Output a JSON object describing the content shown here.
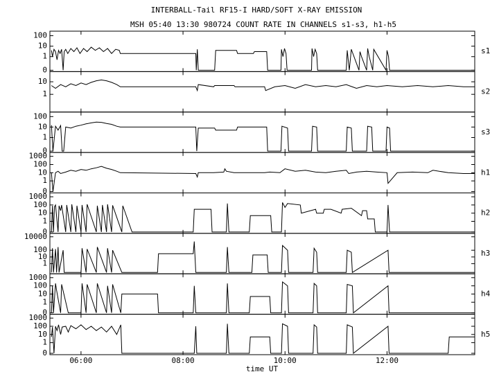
{
  "title": "INTERBALL-Tail RF15-I HARD/SOFT X-RAY EMISSION",
  "subtitle": "MSH 05:40 13:30 980724  COUNT RATE IN CHANNELS s1-s3, h1-h5",
  "xlabel": "time UT",
  "chart_data": [
    {
      "type": "line",
      "label": "s1",
      "color": "#000000",
      "yscale": "log-with-zero",
      "xlim": [
        5.39,
        13.72
      ],
      "xticks": [
        {
          "value": 6,
          "label": "06:00"
        },
        {
          "value": 8,
          "label": "08:00"
        },
        {
          "value": 10,
          "label": "10:00"
        },
        {
          "value": 12,
          "label": "12:00"
        }
      ],
      "ylim": [
        0,
        200
      ],
      "yticks": [
        0,
        1,
        10,
        100
      ],
      "x": [
        5.42,
        5.44,
        5.47,
        5.5,
        5.53,
        5.56,
        5.59,
        5.62,
        5.65,
        5.67,
        5.7,
        5.74,
        5.8,
        5.86,
        5.92,
        5.98,
        6.05,
        6.12,
        6.2,
        6.28,
        6.36,
        6.44,
        6.52,
        6.6,
        6.68,
        6.75,
        6.77,
        8.25,
        8.26,
        8.28,
        8.3,
        8.5,
        8.62,
        8.64,
        9.05,
        9.07,
        9.38,
        9.4,
        9.64,
        9.66,
        9.92,
        9.93,
        9.96,
        9.99,
        10.02,
        10.04,
        10.52,
        10.53,
        10.56,
        10.59,
        10.62,
        10.64,
        11.2,
        11.22,
        11.26,
        11.3,
        11.45,
        11.47,
        11.5,
        11.6,
        11.62,
        11.65,
        11.72,
        11.74,
        11.98,
        12.0,
        12.03,
        12.05,
        13.72
      ],
      "values": [
        4,
        1,
        5,
        3,
        0.5,
        4,
        2,
        5,
        0,
        3,
        5,
        2,
        6,
        3,
        7,
        2,
        6,
        3,
        8,
        4,
        7,
        3,
        6,
        2,
        5,
        4,
        2,
        2,
        0,
        5,
        0,
        0,
        0,
        4,
        4,
        2,
        2,
        3,
        3,
        0,
        0,
        5,
        1,
        6,
        2,
        0,
        0,
        6,
        1,
        5,
        2,
        0,
        0,
        4,
        0,
        5,
        0,
        3,
        1,
        0,
        6,
        1,
        0,
        5,
        0,
        4,
        1,
        0,
        0
      ]
    },
    {
      "type": "line",
      "label": "s2",
      "color": "#000000",
      "yscale": "log-with-zero",
      "xlim": [
        5.39,
        13.72
      ],
      "xticks": [
        {
          "value": 6,
          "label": "06:00"
        },
        {
          "value": 8,
          "label": "08:00"
        },
        {
          "value": 10,
          "label": "10:00"
        },
        {
          "value": 12,
          "label": "12:00"
        }
      ],
      "ylim": [
        0,
        50
      ],
      "yticks": [
        1,
        10
      ],
      "x": [
        5.42,
        5.5,
        5.6,
        5.7,
        5.8,
        5.9,
        6.0,
        6.1,
        6.2,
        6.3,
        6.4,
        6.5,
        6.6,
        6.7,
        6.77,
        8.25,
        8.28,
        8.3,
        8.6,
        8.62,
        9.0,
        9.02,
        9.6,
        9.62,
        9.8,
        10.0,
        10.2,
        10.4,
        10.6,
        10.8,
        11.0,
        11.2,
        11.4,
        11.6,
        11.8,
        12.0,
        12.3,
        12.6,
        12.9,
        13.2,
        13.5,
        13.72
      ],
      "values": [
        5,
        3,
        6,
        4,
        7,
        5,
        8,
        6,
        9,
        12,
        14,
        12,
        9,
        6,
        4,
        4,
        2,
        6,
        4,
        5,
        5,
        4,
        4,
        2,
        4,
        5,
        3,
        6,
        4,
        5,
        4,
        6,
        3,
        5,
        4,
        5,
        4,
        5,
        4,
        5,
        4,
        4
      ]
    },
    {
      "type": "line",
      "label": "s3",
      "color": "#000000",
      "yscale": "log-with-zero",
      "xlim": [
        5.39,
        13.72
      ],
      "xticks": [
        {
          "value": 6,
          "label": "06:00"
        },
        {
          "value": 8,
          "label": "08:00"
        },
        {
          "value": 10,
          "label": "10:00"
        },
        {
          "value": 12,
          "label": "12:00"
        }
      ],
      "ylim": [
        0,
        200
      ],
      "yticks": [
        0,
        1,
        10,
        100
      ],
      "x": [
        5.42,
        5.45,
        5.5,
        5.55,
        5.6,
        5.63,
        5.66,
        5.7,
        5.8,
        5.9,
        6.0,
        6.1,
        6.2,
        6.3,
        6.4,
        6.5,
        6.6,
        6.7,
        6.77,
        8.25,
        8.27,
        8.3,
        8.62,
        8.64,
        9.05,
        9.07,
        9.64,
        9.66,
        9.92,
        9.94,
        10.05,
        10.07,
        10.52,
        10.54,
        10.62,
        10.64,
        11.2,
        11.22,
        11.3,
        11.32,
        11.6,
        11.62,
        11.7,
        11.72,
        11.98,
        12.0,
        12.05,
        12.07,
        13.72
      ],
      "values": [
        15,
        0,
        12,
        5,
        14,
        0,
        0,
        10,
        8,
        12,
        15,
        20,
        25,
        30,
        28,
        22,
        18,
        12,
        10,
        10,
        0,
        8,
        8,
        5,
        5,
        10,
        10,
        0,
        0,
        12,
        8,
        0,
        0,
        12,
        10,
        0,
        0,
        10,
        8,
        0,
        0,
        12,
        10,
        0,
        0,
        10,
        8,
        0,
        0
      ]
    },
    {
      "type": "line",
      "label": "h1",
      "color": "#000000",
      "yscale": "log-with-zero",
      "xlim": [
        5.39,
        13.72
      ],
      "xticks": [
        {
          "value": 6,
          "label": "06:00"
        },
        {
          "value": 8,
          "label": "08:00"
        },
        {
          "value": 10,
          "label": "10:00"
        },
        {
          "value": 12,
          "label": "12:00"
        }
      ],
      "ylim": [
        0,
        2000
      ],
      "yticks": [
        0,
        1,
        10,
        100,
        1000
      ],
      "x": [
        5.42,
        5.45,
        5.5,
        5.55,
        5.6,
        5.7,
        5.8,
        5.9,
        6.0,
        6.1,
        6.2,
        6.3,
        6.4,
        6.5,
        6.6,
        6.7,
        6.77,
        8.25,
        8.28,
        8.3,
        8.6,
        8.8,
        8.82,
        8.85,
        9.0,
        9.4,
        9.6,
        9.7,
        9.9,
        10.0,
        10.2,
        10.4,
        10.6,
        10.8,
        11.0,
        11.2,
        11.25,
        11.4,
        11.6,
        11.8,
        12.0,
        12.02,
        12.2,
        12.5,
        12.8,
        12.9,
        13.2,
        13.5,
        13.72
      ],
      "values": [
        10,
        0,
        10,
        15,
        8,
        12,
        20,
        15,
        25,
        20,
        30,
        40,
        60,
        35,
        25,
        15,
        10,
        8,
        3,
        10,
        10,
        12,
        30,
        15,
        10,
        10,
        10,
        12,
        10,
        30,
        15,
        20,
        12,
        10,
        15,
        20,
        8,
        12,
        15,
        12,
        10,
        0.5,
        10,
        12,
        10,
        20,
        10,
        8,
        8
      ]
    },
    {
      "type": "line",
      "label": "h2",
      "color": "#000000",
      "yscale": "log-with-zero",
      "xlim": [
        5.39,
        13.72
      ],
      "xticks": [
        {
          "value": 6,
          "label": "06:00"
        },
        {
          "value": 8,
          "label": "08:00"
        },
        {
          "value": 10,
          "label": "10:00"
        },
        {
          "value": 12,
          "label": "12:00"
        }
      ],
      "ylim": [
        0,
        2000
      ],
      "yticks": [
        0,
        1,
        10,
        100,
        1000
      ],
      "x": [
        5.42,
        5.44,
        5.46,
        5.48,
        5.5,
        5.55,
        5.57,
        5.6,
        5.62,
        5.7,
        5.72,
        5.8,
        5.82,
        5.9,
        5.92,
        6.0,
        6.02,
        6.1,
        6.12,
        6.3,
        6.32,
        6.4,
        6.42,
        6.5,
        6.52,
        6.6,
        6.62,
        6.8,
        6.82,
        7.0,
        8.2,
        8.22,
        8.55,
        8.57,
        8.85,
        8.87,
        8.9,
        9.3,
        9.32,
        9.72,
        9.74,
        9.93,
        9.95,
        10.0,
        10.05,
        10.3,
        10.32,
        10.6,
        10.62,
        10.75,
        10.77,
        10.9,
        11.1,
        11.12,
        11.3,
        11.5,
        11.52,
        11.6,
        11.62,
        11.75,
        11.77,
        12.0,
        12.02,
        12.05,
        13.72
      ],
      "values": [
        0,
        80,
        0,
        60,
        100,
        0,
        80,
        20,
        100,
        0,
        100,
        0,
        120,
        0,
        80,
        0,
        100,
        0,
        120,
        0,
        80,
        0,
        100,
        0,
        120,
        0,
        90,
        0,
        80,
        0,
        0,
        30,
        30,
        0,
        0,
        150,
        0,
        0,
        5,
        5,
        0,
        0,
        200,
        50,
        150,
        100,
        10,
        30,
        10,
        10,
        30,
        30,
        10,
        30,
        40,
        5,
        20,
        20,
        2,
        2,
        0,
        0,
        100,
        0,
        0
      ]
    },
    {
      "type": "line",
      "label": "h3",
      "color": "#000000",
      "yscale": "log-with-zero",
      "xlim": [
        5.39,
        13.72
      ],
      "xticks": [
        {
          "value": 6,
          "label": "06:00"
        },
        {
          "value": 8,
          "label": "08:00"
        },
        {
          "value": 10,
          "label": "10:00"
        },
        {
          "value": 12,
          "label": "12:00"
        }
      ],
      "ylim": [
        0,
        20000
      ],
      "yticks": [
        1,
        10,
        100,
        10000
      ],
      "x": [
        5.42,
        5.44,
        5.46,
        5.5,
        5.52,
        5.55,
        5.57,
        5.65,
        5.67,
        6.0,
        6.02,
        6.1,
        6.12,
        6.3,
        6.32,
        6.5,
        6.52,
        6.6,
        6.62,
        6.8,
        6.82,
        7.5,
        7.52,
        8.2,
        8.22,
        8.25,
        8.27,
        8.85,
        8.87,
        8.9,
        9.35,
        9.37,
        9.65,
        9.67,
        9.93,
        9.95,
        10.05,
        10.07,
        10.55,
        10.57,
        10.62,
        10.64,
        11.2,
        11.22,
        11.3,
        11.32,
        12.02,
        12.04,
        13.72
      ],
      "values": [
        0,
        200,
        0,
        150,
        0,
        300,
        0,
        100,
        0,
        0,
        200,
        0,
        150,
        0,
        300,
        0,
        200,
        0,
        100,
        0,
        0,
        0,
        30,
        30,
        2000,
        0,
        0,
        0,
        300,
        0,
        0,
        20,
        20,
        0,
        0,
        500,
        100,
        0,
        0,
        200,
        50,
        0,
        0,
        100,
        50,
        0,
        100,
        0,
        0
      ]
    },
    {
      "type": "line",
      "label": "h4",
      "color": "#000000",
      "yscale": "log-with-zero",
      "xlim": [
        5.39,
        13.72
      ],
      "xticks": [
        {
          "value": 6,
          "label": "06:00"
        },
        {
          "value": 8,
          "label": "08:00"
        },
        {
          "value": 10,
          "label": "10:00"
        },
        {
          "value": 12,
          "label": "12:00"
        }
      ],
      "ylim": [
        0,
        2000
      ],
      "yticks": [
        0,
        1,
        10,
        100,
        1000
      ],
      "x": [
        5.42,
        5.44,
        5.46,
        5.5,
        5.52,
        5.6,
        5.62,
        5.75,
        5.77,
        6.0,
        6.02,
        6.1,
        6.12,
        6.3,
        6.32,
        6.5,
        6.52,
        6.6,
        6.62,
        6.78,
        6.8,
        7.5,
        7.52,
        8.2,
        8.22,
        8.25,
        8.27,
        8.85,
        8.87,
        8.9,
        9.3,
        9.32,
        9.7,
        9.72,
        9.93,
        9.95,
        10.05,
        10.07,
        10.55,
        10.57,
        10.62,
        10.64,
        11.2,
        11.22,
        11.32,
        11.34,
        12.02,
        12.04,
        13.72
      ],
      "values": [
        0,
        100,
        0,
        200,
        30,
        0,
        150,
        0,
        0,
        0,
        200,
        0,
        150,
        0,
        200,
        0,
        100,
        0,
        150,
        0,
        10,
        10,
        0,
        0,
        100,
        0,
        0,
        0,
        200,
        0,
        0,
        5,
        5,
        0,
        0,
        300,
        100,
        0,
        0,
        200,
        100,
        0,
        0,
        150,
        100,
        0,
        100,
        0,
        0
      ]
    },
    {
      "type": "line",
      "label": "h5",
      "color": "#000000",
      "yscale": "log-with-zero",
      "xlim": [
        5.39,
        13.72
      ],
      "xticks": [
        {
          "value": 6,
          "label": "06:00"
        },
        {
          "value": 8,
          "label": "08:00"
        },
        {
          "value": 10,
          "label": "10:00"
        },
        {
          "value": 12,
          "label": "12:00"
        }
      ],
      "ylim": [
        0,
        2000
      ],
      "yticks": [
        0,
        1,
        10,
        100,
        1000
      ],
      "x": [
        5.42,
        5.44,
        5.47,
        5.5,
        5.53,
        5.56,
        5.6,
        5.63,
        5.7,
        5.75,
        5.8,
        5.9,
        6.0,
        6.1,
        6.2,
        6.3,
        6.4,
        6.5,
        6.6,
        6.7,
        6.78,
        6.8,
        8.2,
        8.22,
        8.25,
        8.27,
        8.85,
        8.87,
        8.9,
        9.3,
        9.32,
        9.7,
        9.72,
        9.93,
        9.95,
        10.05,
        10.07,
        10.55,
        10.57,
        10.62,
        10.64,
        11.2,
        11.22,
        11.32,
        11.34,
        12.02,
        12.04,
        13.2,
        13.22,
        13.72
      ],
      "values": [
        5,
        80,
        0,
        100,
        30,
        150,
        10,
        80,
        100,
        20,
        120,
        50,
        150,
        40,
        100,
        30,
        80,
        20,
        100,
        10,
        150,
        0,
        0,
        0,
        100,
        0,
        0,
        200,
        0,
        0,
        5,
        5,
        0,
        0,
        200,
        100,
        0,
        0,
        150,
        80,
        0,
        0,
        150,
        80,
        0,
        100,
        0,
        0,
        5,
        5
      ]
    }
  ]
}
